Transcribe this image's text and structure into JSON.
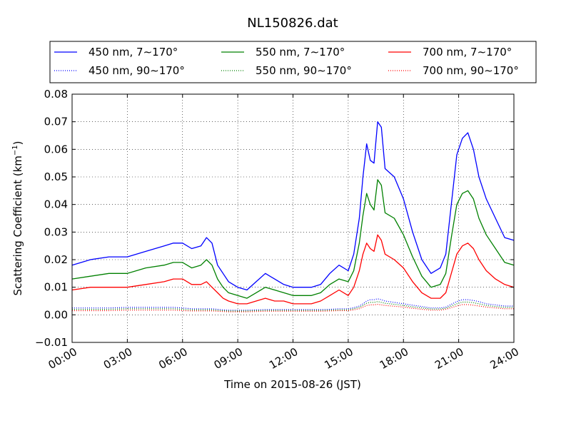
{
  "chart_data": {
    "type": "line",
    "title": "NL150826.dat",
    "xlabel": "Time on 2015-08-26 (JST)",
    "ylabel": "Scattering Coefficient (km",
    "ylabel_sup": "−1",
    "ylabel_close": ")",
    "xlim": [
      0,
      24
    ],
    "ylim": [
      -0.01,
      0.08
    ],
    "x_ticks": [
      0,
      3,
      6,
      9,
      12,
      15,
      18,
      21,
      24
    ],
    "x_tick_labels": [
      "00:00",
      "03:00",
      "06:00",
      "09:00",
      "12:00",
      "15:00",
      "18:00",
      "21:00",
      "24:00"
    ],
    "y_ticks": [
      -0.01,
      0.0,
      0.01,
      0.02,
      0.03,
      0.04,
      0.05,
      0.06,
      0.07,
      0.08
    ],
    "y_tick_labels": [
      "−0.01",
      "0.00",
      "0.01",
      "0.02",
      "0.03",
      "0.04",
      "0.05",
      "0.06",
      "0.07",
      "0.08"
    ],
    "grid": true,
    "legend_placement": "top",
    "x": [
      0.0,
      1.0,
      2.0,
      3.0,
      4.0,
      5.0,
      5.5,
      6.0,
      6.5,
      7.0,
      7.3,
      7.6,
      7.9,
      8.2,
      8.5,
      9.0,
      9.5,
      10.0,
      10.5,
      11.0,
      11.5,
      12.0,
      12.5,
      13.0,
      13.5,
      14.0,
      14.5,
      15.0,
      15.3,
      15.6,
      15.8,
      16.0,
      16.2,
      16.4,
      16.6,
      16.8,
      17.0,
      17.5,
      18.0,
      18.5,
      19.0,
      19.5,
      20.0,
      20.3,
      20.6,
      20.9,
      21.2,
      21.5,
      21.8,
      22.1,
      22.5,
      23.0,
      23.5,
      24.0
    ],
    "series": [
      {
        "name": "450 nm, 7∼170°",
        "color": "#0000ff",
        "style": "solid",
        "values": [
          0.018,
          0.02,
          0.021,
          0.021,
          0.023,
          0.025,
          0.026,
          0.026,
          0.024,
          0.025,
          0.028,
          0.026,
          0.018,
          0.015,
          0.012,
          0.01,
          0.009,
          0.012,
          0.015,
          0.013,
          0.011,
          0.01,
          0.01,
          0.01,
          0.011,
          0.015,
          0.018,
          0.016,
          0.022,
          0.035,
          0.05,
          0.062,
          0.056,
          0.055,
          0.07,
          0.068,
          0.053,
          0.05,
          0.042,
          0.03,
          0.02,
          0.015,
          0.017,
          0.022,
          0.04,
          0.058,
          0.064,
          0.066,
          0.06,
          0.05,
          0.042,
          0.035,
          0.028,
          0.027
        ]
      },
      {
        "name": "550 nm, 7∼170°",
        "color": "#008000",
        "style": "solid",
        "values": [
          0.013,
          0.014,
          0.015,
          0.015,
          0.017,
          0.018,
          0.019,
          0.019,
          0.017,
          0.018,
          0.02,
          0.018,
          0.013,
          0.01,
          0.008,
          0.007,
          0.006,
          0.008,
          0.01,
          0.009,
          0.008,
          0.007,
          0.007,
          0.007,
          0.008,
          0.011,
          0.013,
          0.012,
          0.016,
          0.026,
          0.036,
          0.044,
          0.04,
          0.038,
          0.049,
          0.047,
          0.037,
          0.035,
          0.029,
          0.021,
          0.014,
          0.01,
          0.011,
          0.015,
          0.028,
          0.04,
          0.044,
          0.045,
          0.042,
          0.035,
          0.029,
          0.024,
          0.019,
          0.018
        ]
      },
      {
        "name": "700 nm, 7∼170°",
        "color": "#ff0000",
        "style": "solid",
        "values": [
          0.009,
          0.01,
          0.01,
          0.01,
          0.011,
          0.012,
          0.013,
          0.013,
          0.011,
          0.011,
          0.012,
          0.01,
          0.008,
          0.006,
          0.005,
          0.004,
          0.004,
          0.005,
          0.006,
          0.005,
          0.005,
          0.004,
          0.004,
          0.004,
          0.005,
          0.007,
          0.009,
          0.007,
          0.01,
          0.016,
          0.022,
          0.026,
          0.024,
          0.023,
          0.029,
          0.027,
          0.022,
          0.02,
          0.017,
          0.012,
          0.008,
          0.006,
          0.006,
          0.008,
          0.015,
          0.022,
          0.025,
          0.026,
          0.024,
          0.02,
          0.016,
          0.013,
          0.011,
          0.01
        ]
      },
      {
        "name": "450 nm, 90∼170°",
        "color": "#0000ff",
        "style": "dotted",
        "values": [
          0.0025,
          0.0025,
          0.0025,
          0.0027,
          0.0027,
          0.0027,
          0.0027,
          0.0025,
          0.0022,
          0.0022,
          0.0022,
          0.0022,
          0.002,
          0.0018,
          0.0017,
          0.0017,
          0.0017,
          0.0018,
          0.0019,
          0.0019,
          0.0019,
          0.0019,
          0.0019,
          0.0019,
          0.0019,
          0.002,
          0.0022,
          0.0022,
          0.0026,
          0.0032,
          0.004,
          0.005,
          0.0055,
          0.0055,
          0.0058,
          0.0055,
          0.005,
          0.0045,
          0.004,
          0.0035,
          0.003,
          0.0025,
          0.0025,
          0.0028,
          0.0038,
          0.0048,
          0.0055,
          0.0055,
          0.0052,
          0.0048,
          0.004,
          0.0036,
          0.0032,
          0.0032
        ]
      },
      {
        "name": "550 nm, 90∼170°",
        "color": "#008000",
        "style": "dotted",
        "values": [
          0.002,
          0.002,
          0.002,
          0.0022,
          0.0022,
          0.0022,
          0.0022,
          0.002,
          0.0018,
          0.0018,
          0.0018,
          0.0018,
          0.0016,
          0.0015,
          0.0014,
          0.0014,
          0.0014,
          0.0015,
          0.0016,
          0.0016,
          0.0016,
          0.0016,
          0.0016,
          0.0016,
          0.0016,
          0.0017,
          0.0018,
          0.0018,
          0.0022,
          0.0027,
          0.0034,
          0.0042,
          0.0045,
          0.0045,
          0.0048,
          0.0045,
          0.0042,
          0.0038,
          0.0034,
          0.0029,
          0.0025,
          0.0021,
          0.0021,
          0.0024,
          0.0032,
          0.004,
          0.0046,
          0.0046,
          0.0044,
          0.004,
          0.0034,
          0.003,
          0.0027,
          0.0027
        ]
      },
      {
        "name": "700 nm, 90∼170°",
        "color": "#ff0000",
        "style": "dotted",
        "values": [
          0.0015,
          0.0015,
          0.0015,
          0.0017,
          0.0017,
          0.0017,
          0.0017,
          0.0015,
          0.0014,
          0.0014,
          0.0014,
          0.0014,
          0.0013,
          0.0012,
          0.0011,
          0.0011,
          0.0011,
          0.0012,
          0.0013,
          0.0013,
          0.0013,
          0.0013,
          0.0013,
          0.0013,
          0.0013,
          0.0014,
          0.0015,
          0.0015,
          0.0018,
          0.0022,
          0.0028,
          0.0034,
          0.0036,
          0.0036,
          0.0038,
          0.0036,
          0.0034,
          0.0031,
          0.0028,
          0.0024,
          0.002,
          0.0017,
          0.0017,
          0.002,
          0.0026,
          0.0032,
          0.0037,
          0.0037,
          0.0035,
          0.0032,
          0.0028,
          0.0025,
          0.0022,
          0.0022
        ]
      }
    ]
  }
}
